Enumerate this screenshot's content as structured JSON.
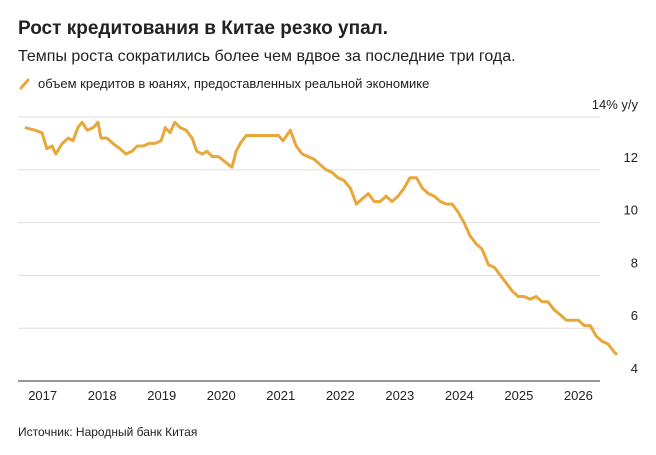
{
  "chart_data": {
    "type": "line",
    "title": "Рост кредитования в Китае резко упал.",
    "subtitle": "Темпы роста сократились более чем вдвое за последние три года.",
    "source": "Источник: Народный банк Китая",
    "x": [
      2017.2,
      2017.37,
      2017.49,
      2017.57,
      2017.66,
      2017.72,
      2017.83,
      2017.93,
      2018.01,
      2018.09,
      2018.16,
      2018.25,
      2018.35,
      2018.43,
      2018.48,
      2018.58,
      2018.68,
      2018.8,
      2018.9,
      2019.0,
      2019.09,
      2019.19,
      2019.29,
      2019.39,
      2019.49,
      2019.56,
      2019.64,
      2019.72,
      2019.81,
      2019.91,
      2020.01,
      2020.09,
      2020.18,
      2020.26,
      2020.35,
      2020.45,
      2020.51,
      2020.62,
      2020.68,
      2020.75,
      2020.82,
      2020.92,
      2021.02,
      2021.15,
      2021.25,
      2021.36,
      2021.46,
      2021.54,
      2021.66,
      2021.76,
      2021.86,
      2021.96,
      2022.06,
      2022.16,
      2022.26,
      2022.36,
      2022.46,
      2022.56,
      2022.67,
      2022.77,
      2022.87,
      2022.97,
      2023.07,
      2023.17,
      2023.27,
      2023.37,
      2023.47,
      2023.57,
      2023.67,
      2023.78,
      2023.88,
      2023.98,
      2024.08,
      2024.18,
      2024.28,
      2024.38,
      2024.48,
      2024.58,
      2024.68,
      2024.78,
      2024.88,
      2024.99,
      2025.09,
      2025.19,
      2025.29,
      2025.39,
      2025.49,
      2025.59,
      2025.69,
      2025.79,
      2025.89,
      2025.99,
      2026.09,
      2026.2,
      2026.3,
      2026.4,
      2026.5,
      2026.6,
      2026.7,
      2026.8,
      2026.9,
      2027.0,
      2027.1,
      2027.15
    ],
    "series": [
      {
        "name": "объем кредитов в юанях, предоставленных реальной экономике",
        "color": "#e8a73a",
        "values": [
          13.6,
          13.5,
          13.4,
          12.8,
          12.9,
          12.6,
          13.0,
          13.2,
          13.1,
          13.6,
          13.8,
          13.5,
          13.6,
          13.8,
          13.2,
          13.2,
          13.0,
          12.8,
          12.6,
          12.7,
          12.9,
          12.9,
          13.0,
          13.0,
          13.1,
          13.6,
          13.4,
          13.8,
          13.6,
          13.5,
          13.2,
          12.7,
          12.6,
          12.7,
          12.5,
          12.5,
          12.4,
          12.2,
          12.1,
          12.7,
          13.0,
          13.3,
          13.3,
          13.3,
          13.3,
          13.3,
          13.3,
          13.1,
          13.5,
          12.9,
          12.6,
          12.5,
          12.4,
          12.2,
          12.0,
          11.9,
          11.7,
          11.6,
          11.3,
          10.7,
          10.9,
          11.1,
          10.8,
          10.8,
          11.0,
          10.8,
          11.0,
          11.3,
          11.7,
          11.7,
          11.3,
          11.1,
          11.0,
          10.8,
          10.7,
          10.7,
          10.4,
          10.0,
          9.5,
          9.2,
          9.0,
          8.4,
          8.3,
          8.0,
          7.7,
          7.4,
          7.2,
          7.2,
          7.1,
          7.2,
          7.0,
          7.0,
          6.7,
          6.5,
          6.3,
          6.3,
          6.3,
          6.1,
          6.1,
          5.7,
          5.5,
          5.4,
          5.1,
          5.0
        ]
      }
    ],
    "xlim": [
      2016.8,
      2027.3
    ],
    "xticks": [
      {
        "value": 2017.5,
        "label": "2017"
      },
      {
        "value": 2018.5,
        "label": "2018"
      },
      {
        "value": 2019.5,
        "label": "2019"
      },
      {
        "value": 2020.5,
        "label": "2020"
      },
      {
        "value": 2021.5,
        "label": "2021"
      },
      {
        "value": 2022.5,
        "label": "2022"
      },
      {
        "value": 2023.5,
        "label": "2023"
      },
      {
        "value": 2024.5,
        "label": "2024"
      },
      {
        "value": 2025.5,
        "label": "2025"
      },
      {
        "value": 2026.5,
        "label": "2026"
      }
    ],
    "ylim": [
      4,
      14
    ],
    "yticks": [
      4,
      6,
      8,
      10,
      12,
      {
        "value": 14,
        "label": "14% y/y"
      }
    ],
    "grid": true
  }
}
